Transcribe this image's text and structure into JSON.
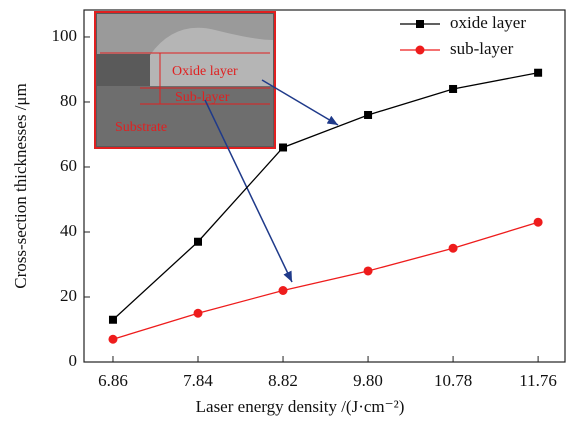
{
  "chart_data": {
    "type": "line",
    "x_label": "Laser energy density /(J·cm⁻²)",
    "y_label": "Cross-section thicknesses /μm",
    "x": [
      6.86,
      7.84,
      8.82,
      9.8,
      10.78,
      11.76
    ],
    "series": [
      {
        "name": "oxide layer",
        "color": "#000000",
        "marker": "square",
        "values": [
          13,
          37,
          66,
          76,
          84,
          89
        ]
      },
      {
        "name": "sub-layer",
        "color": "#ee1c1c",
        "marker": "circle",
        "values": [
          7,
          15,
          22,
          28,
          35,
          43
        ]
      }
    ],
    "xlim": [
      6.526,
      12.07
    ],
    "xticks": [
      6.86,
      7.84,
      8.82,
      {
        "value": 9.8,
        "label": "9.80"
      },
      10.78,
      11.76
    ],
    "ylim": [
      0,
      108.3
    ],
    "yticks": [
      0,
      20,
      40,
      60,
      80,
      100
    ],
    "legend": "upper right",
    "annotations": [
      "Oxide layer",
      "Sub-layer",
      "Substrate"
    ]
  }
}
